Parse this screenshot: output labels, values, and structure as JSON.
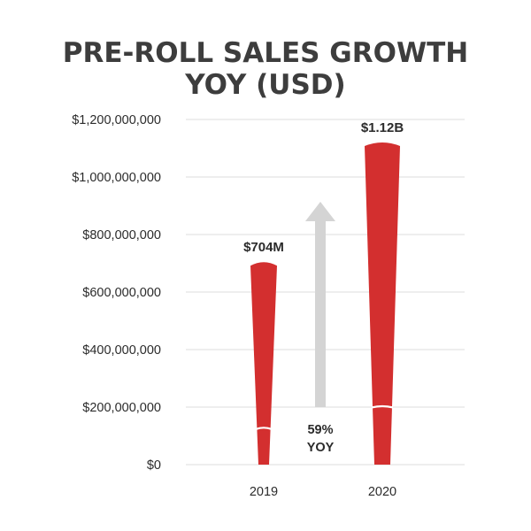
{
  "chart_data": {
    "type": "bar",
    "title_lines": [
      "PRE-ROLL SALES GROWTH",
      "YOY (USD)"
    ],
    "categories": [
      "2019",
      "2020"
    ],
    "values": [
      704000000,
      1120000000
    ],
    "data_labels": [
      "$704M",
      "$1.12B"
    ],
    "ylim": [
      0,
      1200000000
    ],
    "y_ticks": [
      0,
      200000000,
      400000000,
      600000000,
      800000000,
      1000000000,
      1200000000
    ],
    "y_tick_labels": [
      "$0",
      "$200,000,000",
      "$400,000,000",
      "$600,000,000",
      "$800,000,000",
      "$1,000,000,000",
      "$1,200,000,000"
    ],
    "grid": true,
    "annotation": {
      "lines": [
        "59%",
        "YOY"
      ]
    },
    "colors": {
      "bar": "#d32f2f",
      "arrow": "#d4d4d4",
      "grid": "#dcdcdc",
      "band": "#ffffff"
    }
  }
}
